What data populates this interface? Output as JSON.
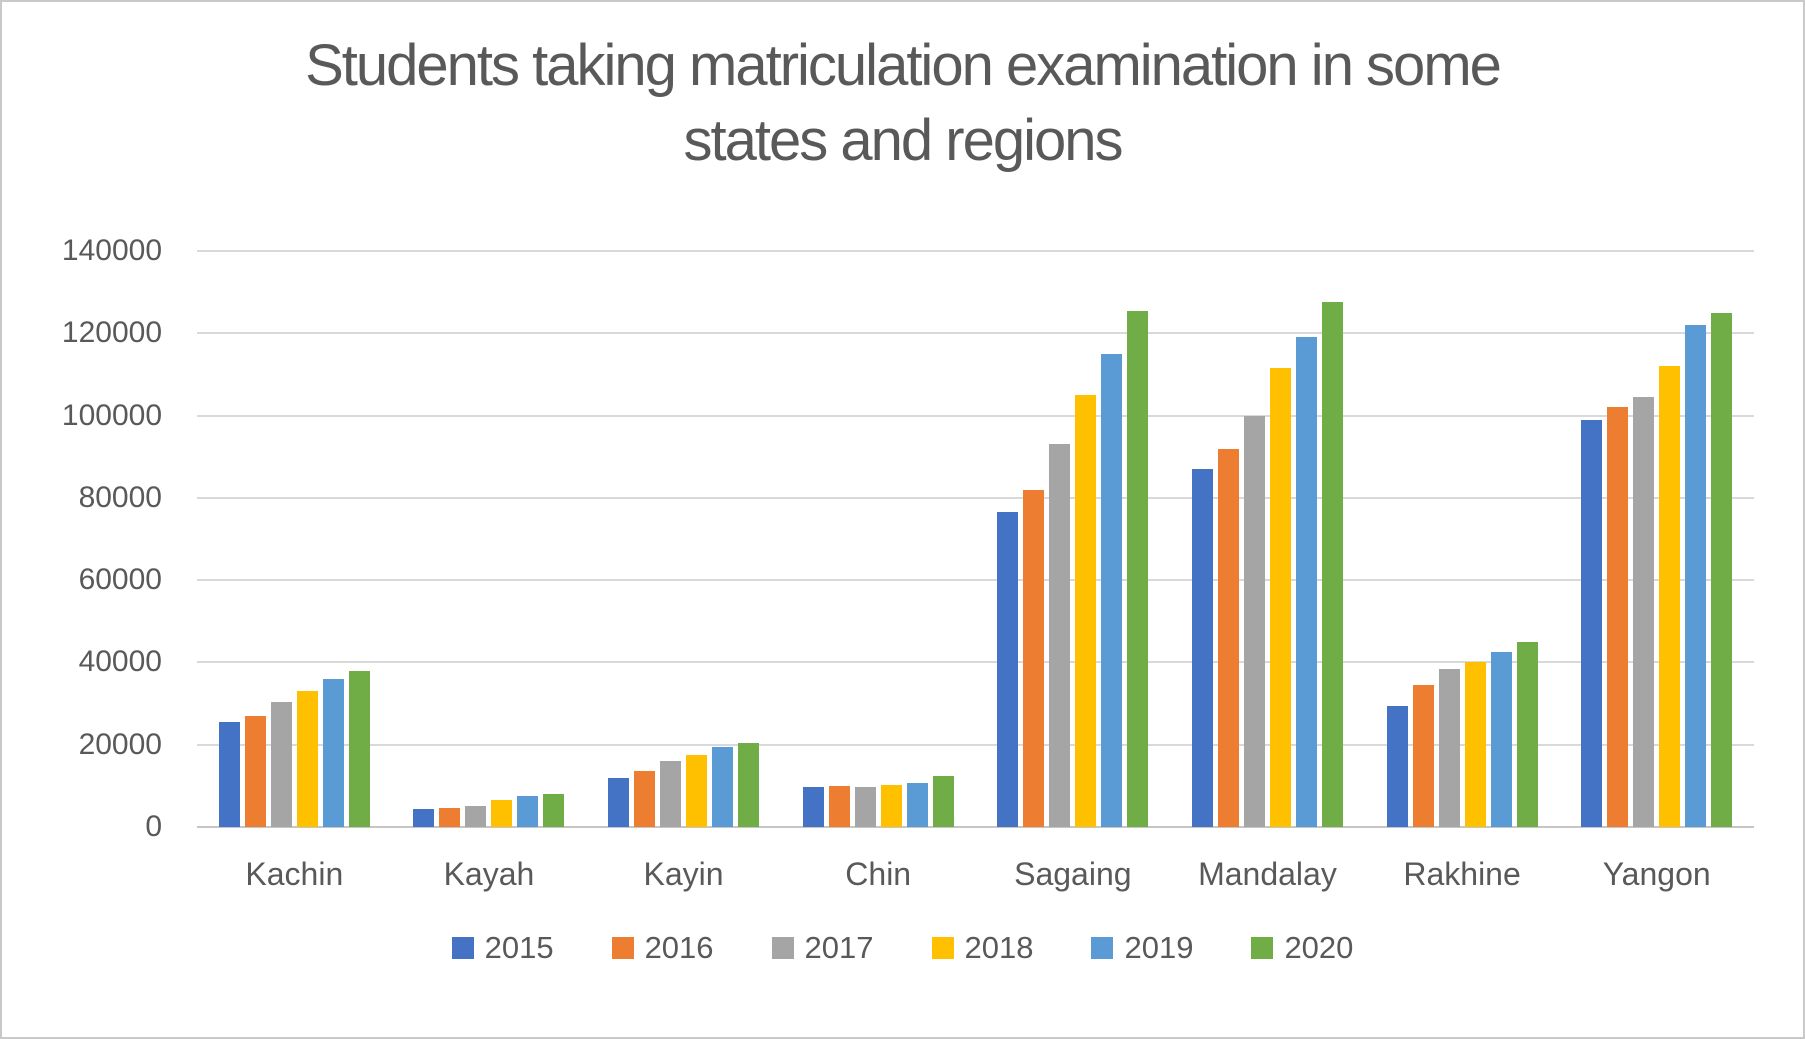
{
  "page": {
    "background_color": "#FFFFFF",
    "border_color": "#C9C9C9",
    "text_color": "#595959"
  },
  "chart_data": {
    "type": "bar",
    "title": "Students taking matriculation examination in some states and regions",
    "title_line1": "Students taking matriculation examination in some",
    "title_line2": "states and regions",
    "categories": [
      "Kachin",
      "Kayah",
      "Kayin",
      "Chin",
      "Sagaing",
      "Mandalay",
      "Rakhine",
      "Yangon"
    ],
    "series": [
      {
        "name": "2015",
        "color": "#4472C4",
        "values": [
          25500,
          4300,
          12000,
          9700,
          76500,
          87000,
          29500,
          99000
        ]
      },
      {
        "name": "2016",
        "color": "#ED7D31",
        "values": [
          27000,
          4600,
          13500,
          9900,
          82000,
          92000,
          34500,
          102000
        ]
      },
      {
        "name": "2017",
        "color": "#A5A5A5",
        "values": [
          30300,
          5100,
          16000,
          9700,
          93000,
          100000,
          38500,
          104500
        ]
      },
      {
        "name": "2018",
        "color": "#FFC000",
        "values": [
          33000,
          6500,
          17500,
          10200,
          105000,
          111500,
          40000,
          112000
        ]
      },
      {
        "name": "2019",
        "color": "#5B9BD5",
        "values": [
          36000,
          7500,
          19500,
          10700,
          115000,
          119000,
          42500,
          122000
        ]
      },
      {
        "name": "2020",
        "color": "#70AD47",
        "values": [
          38000,
          8000,
          20500,
          12400,
          125500,
          127500,
          45000,
          125000
        ]
      }
    ],
    "yticks": [
      0,
      20000,
      40000,
      60000,
      80000,
      100000,
      120000,
      140000
    ],
    "ylim": [
      0,
      140000
    ],
    "xlabel": "",
    "ylabel": "",
    "grid": "horizontal",
    "gridline_color": "#D9D9D9",
    "axis_line_color": "#C6C6C6",
    "legend_position": "bottom"
  }
}
